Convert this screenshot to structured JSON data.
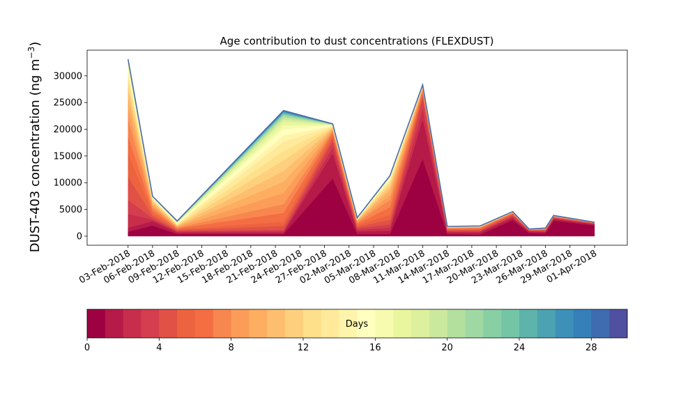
{
  "chart_data": {
    "type": "area",
    "title": "Age contribution to dust concentrations (FLEXDUST)",
    "ylabel": "DUST-403 concentration (ng m",
    "ylabel_sup": "−3",
    "ylabel_tail": ")",
    "xlabel": "",
    "ylim": [
      -1700,
      34800
    ],
    "yticks": [
      0,
      5000,
      10000,
      15000,
      20000,
      25000,
      30000
    ],
    "ytick_labels": [
      "0",
      "5000",
      "10000",
      "15000",
      "20000",
      "25000",
      "30000"
    ],
    "x_range": [
      "2018-01-29",
      "2018-04-05"
    ],
    "xtick_dates": [
      "2018-02-03",
      "2018-02-06",
      "2018-02-09",
      "2018-02-12",
      "2018-02-15",
      "2018-02-18",
      "2018-02-21",
      "2018-02-24",
      "2018-02-27",
      "2018-03-02",
      "2018-03-05",
      "2018-03-08",
      "2018-03-11",
      "2018-03-14",
      "2018-03-17",
      "2018-03-20",
      "2018-03-23",
      "2018-03-26",
      "2018-03-29",
      "2018-04-01"
    ],
    "xtick_labels": [
      "03-Feb-2018",
      "06-Feb-2018",
      "09-Feb-2018",
      "12-Feb-2018",
      "15-Feb-2018",
      "18-Feb-2018",
      "21-Feb-2018",
      "24-Feb-2018",
      "27-Feb-2018",
      "02-Mar-2018",
      "05-Mar-2018",
      "08-Mar-2018",
      "11-Mar-2018",
      "14-Mar-2018",
      "17-Mar-2018",
      "20-Mar-2018",
      "23-Mar-2018",
      "26-Mar-2018",
      "29-Mar-2018",
      "01-Apr-2018"
    ],
    "x": [
      "2018-02-03",
      "2018-02-06",
      "2018-02-09",
      "2018-02-22",
      "2018-02-28",
      "2018-03-03",
      "2018-03-07",
      "2018-03-11",
      "2018-03-14",
      "2018-03-18",
      "2018-03-22",
      "2018-03-24",
      "2018-03-26",
      "2018-03-27",
      "2018-04-01"
    ],
    "anchors": {
      "depth": [
        1,
        2,
        4,
        6,
        8,
        10,
        12,
        14,
        16,
        18,
        20,
        22,
        24,
        26,
        28,
        30
      ],
      "values": [
        [
          800,
          2000,
          400,
          400,
          10800,
          400,
          400,
          14500,
          400,
          300,
          3000,
          600,
          500,
          2900,
          2000
        ],
        [
          1600,
          2800,
          700,
          700,
          15500,
          900,
          1000,
          22000,
          700,
          700,
          3400,
          850,
          800,
          3200,
          2200
        ],
        [
          6800,
          3400,
          1000,
          1200,
          17800,
          1500,
          2200,
          25800,
          1000,
          1000,
          3900,
          1050,
          1000,
          3450,
          2380
        ],
        [
          15500,
          4300,
          1300,
          2700,
          19000,
          2100,
          4000,
          26900,
          1300,
          1400,
          4200,
          1150,
          1200,
          3600,
          2450
        ],
        [
          22000,
          5400,
          1600,
          6000,
          19700,
          2600,
          6800,
          27400,
          1500,
          1600,
          4370,
          1220,
          1330,
          3700,
          2500
        ],
        [
          26000,
          6100,
          1850,
          10200,
          20100,
          2900,
          8600,
          27800,
          1620,
          1730,
          4450,
          1260,
          1400,
          3750,
          2530
        ],
        [
          28700,
          6700,
          2050,
          14200,
          20400,
          3100,
          9800,
          28000,
          1700,
          1800,
          4500,
          1290,
          1450,
          3790,
          2550
        ],
        [
          30500,
          7000,
          2250,
          17700,
          20600,
          3250,
          10500,
          28100,
          1750,
          1850,
          4530,
          1310,
          1480,
          3815,
          2560
        ],
        [
          31700,
          7200,
          2420,
          20000,
          20750,
          3330,
          10900,
          28180,
          1780,
          1870,
          4550,
          1320,
          1495,
          3830,
          2570
        ],
        [
          32400,
          7300,
          2560,
          21400,
          20850,
          3380,
          11100,
          28230,
          1800,
          1885,
          4560,
          1325,
          1505,
          3840,
          2575
        ],
        [
          32800,
          7370,
          2660,
          22200,
          20920,
          3410,
          11200,
          28270,
          1810,
          1895,
          4570,
          1330,
          1510,
          3845,
          2580
        ],
        [
          33000,
          7410,
          2740,
          22700,
          20960,
          3430,
          11260,
          28290,
          1815,
          1900,
          4575,
          1333,
          1515,
          3850,
          2585
        ],
        [
          33050,
          7430,
          2790,
          23000,
          20985,
          3440,
          11290,
          28300,
          1820,
          1905,
          4580,
          1336,
          1518,
          3855,
          2588
        ],
        [
          33080,
          7440,
          2820,
          23250,
          21000,
          3445,
          11305,
          28310,
          1822,
          1907,
          4585,
          1338,
          1520,
          3858,
          2590
        ],
        [
          33095,
          7445,
          2835,
          23420,
          21005,
          3448,
          11312,
          28315,
          1824,
          1908,
          4588,
          1339,
          1522,
          3860,
          2592
        ],
        [
          33100,
          7450,
          2840,
          23500,
          21010,
          3450,
          11320,
          28320,
          1825,
          1910,
          4590,
          1340,
          1525,
          3862,
          2595
        ]
      ]
    },
    "colorbar": {
      "label": "Days",
      "min": 0,
      "max": 30,
      "ticks": [
        0,
        4,
        8,
        12,
        16,
        20,
        24,
        28
      ],
      "tick_labels": [
        "0",
        "4",
        "8",
        "12",
        "16",
        "20",
        "24",
        "28"
      ],
      "colors": [
        "#9e0142",
        "#b51a48",
        "#c82e4c",
        "#d53e4f",
        "#e15146",
        "#ec643f",
        "#f46d43",
        "#f8864f",
        "#fb9d59",
        "#fdae61",
        "#fdbf6f",
        "#fed07e",
        "#fee08b",
        "#feea9a",
        "#fff4ac",
        "#ffffbf",
        "#f7fbb0",
        "#eaf69e",
        "#dcf09d",
        "#cbe99d",
        "#b4e09e",
        "#a0d8a4",
        "#88cfa4",
        "#73c5a5",
        "#5eb3aa",
        "#4da2b1",
        "#3d91b9",
        "#3580b9",
        "#3f6cb0",
        "#5050a0"
      ]
    },
    "top_line_color": "#4a6aae",
    "grid": false,
    "legend": "colorbar-bottom"
  }
}
